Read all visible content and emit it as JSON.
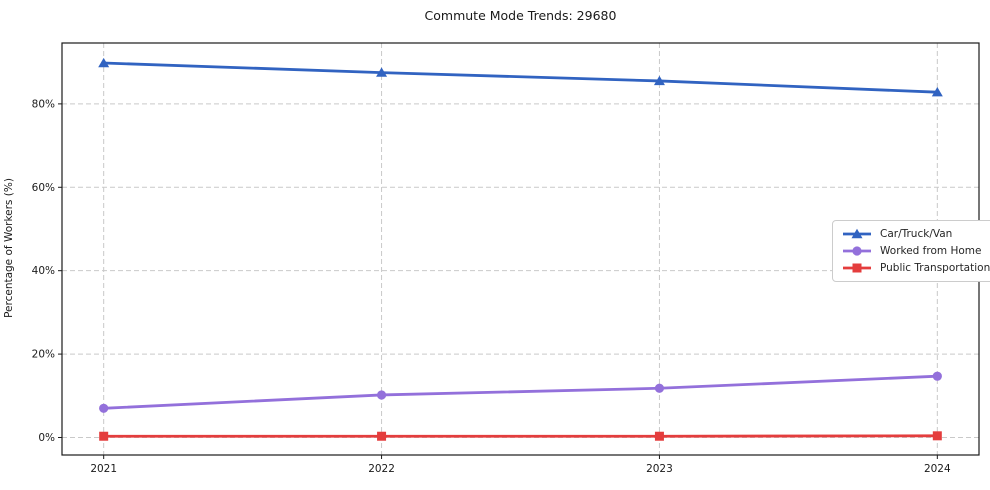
{
  "figure": {
    "background": "#ffffff"
  },
  "chart_data": {
    "type": "line",
    "title": "Commute Mode Trends: 29680",
    "xlabel": "",
    "ylabel": "Percentage of Workers (%)",
    "x": [
      2021,
      2022,
      2023,
      2024
    ],
    "xticklabels": [
      "2021",
      "2022",
      "2023",
      "2024"
    ],
    "series": [
      {
        "name": "Car/Truck/Van",
        "marker": "triangle",
        "color": "#3163c1",
        "values": [
          89.8,
          87.5,
          85.5,
          82.8
        ]
      },
      {
        "name": "Worked from Home",
        "marker": "circle",
        "color": "#9370db",
        "values": [
          7.0,
          10.2,
          11.8,
          14.7
        ]
      },
      {
        "name": "Public Transportation",
        "marker": "square",
        "color": "#e43d3d",
        "values": [
          0.3,
          0.3,
          0.3,
          0.4
        ]
      }
    ],
    "xlim": [
      2020.85,
      2024.15
    ],
    "ylim": [
      -4.2,
      94.6
    ],
    "yticks": [
      {
        "value": 0,
        "label": "0%"
      },
      {
        "value": 20,
        "label": "20%"
      },
      {
        "value": 40,
        "label": "40%"
      },
      {
        "value": 60,
        "label": "60%"
      },
      {
        "value": 80,
        "label": "80%"
      }
    ],
    "grid": true,
    "grid_style": "dashed",
    "legend_position": "center-right"
  },
  "colors": {
    "grid": "#c9c9c9",
    "spine": "#1a1a1a",
    "text": "#1a1a1a"
  }
}
